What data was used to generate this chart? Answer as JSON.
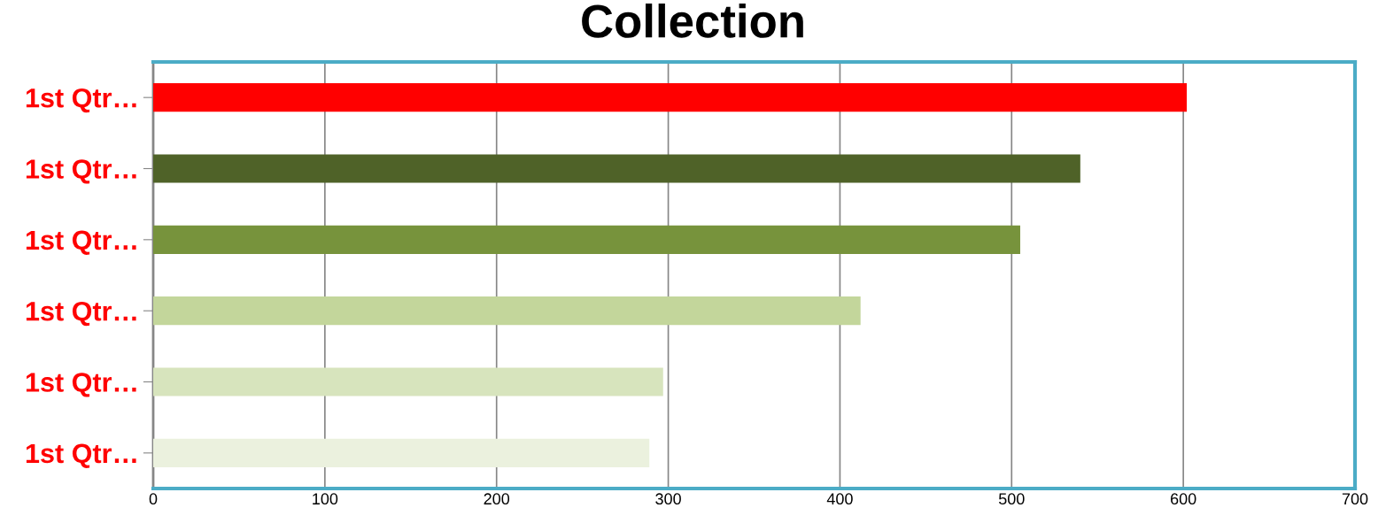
{
  "chart_data": {
    "type": "bar",
    "orientation": "horizontal",
    "title": "Collection",
    "categories": [
      "1st Qtr…",
      "1st Qtr…",
      "1st Qtr…",
      "1st Qtr…",
      "1st Qtr…",
      "1st Qtr…"
    ],
    "values": [
      602,
      540,
      505,
      412,
      297,
      289
    ],
    "colors": [
      "#ff0000",
      "#4f6228",
      "#77933c",
      "#c3d69b",
      "#d7e4bd",
      "#ebf1de"
    ],
    "xlim": [
      0,
      700
    ],
    "xticks": [
      0,
      100,
      200,
      300,
      400,
      500,
      600,
      700
    ],
    "grid": "x",
    "legend": false
  }
}
